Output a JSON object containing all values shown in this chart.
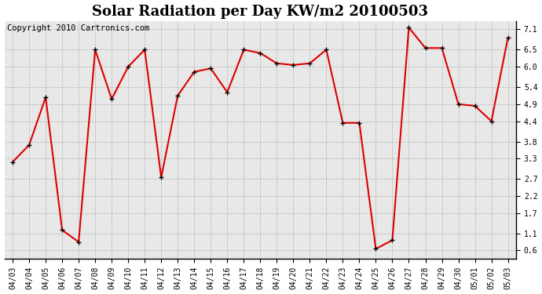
{
  "title": "Solar Radiation per Day KW/m2 20100503",
  "copyright": "Copyright 2010 Cartronics.com",
  "dates": [
    "04/03",
    "04/04",
    "04/05",
    "04/06",
    "04/07",
    "04/08",
    "04/09",
    "04/10",
    "04/11",
    "04/12",
    "04/13",
    "04/14",
    "04/15",
    "04/16",
    "04/17",
    "04/18",
    "04/19",
    "04/20",
    "04/21",
    "04/22",
    "04/23",
    "04/24",
    "04/25",
    "04/26",
    "04/27",
    "04/28",
    "04/29",
    "04/30",
    "05/01",
    "05/02",
    "05/03"
  ],
  "values": [
    3.2,
    3.7,
    5.1,
    1.2,
    0.85,
    6.5,
    5.05,
    6.0,
    6.5,
    2.75,
    5.15,
    5.85,
    5.95,
    5.25,
    6.5,
    6.4,
    6.1,
    6.05,
    6.1,
    6.5,
    4.35,
    4.35,
    0.65,
    0.9,
    7.15,
    6.55,
    6.55,
    4.9,
    4.85,
    4.4,
    6.85
  ],
  "line_color": "#dd0000",
  "marker": "+",
  "marker_color": "#000000",
  "marker_size": 5,
  "marker_linewidth": 1.0,
  "line_width": 1.5,
  "bg_color": "#e8e8e8",
  "grid_color": "#b0b0b0",
  "yticks": [
    0.6,
    1.1,
    1.7,
    2.2,
    2.7,
    3.3,
    3.8,
    4.4,
    4.9,
    5.4,
    6.0,
    6.5,
    7.1
  ],
  "ylim": [
    0.35,
    7.35
  ],
  "title_fontsize": 13,
  "copyright_fontsize": 7.5,
  "tick_fontsize": 7,
  "spine_color": "#000000",
  "fig_width": 6.9,
  "fig_height": 3.75,
  "dpi": 100
}
